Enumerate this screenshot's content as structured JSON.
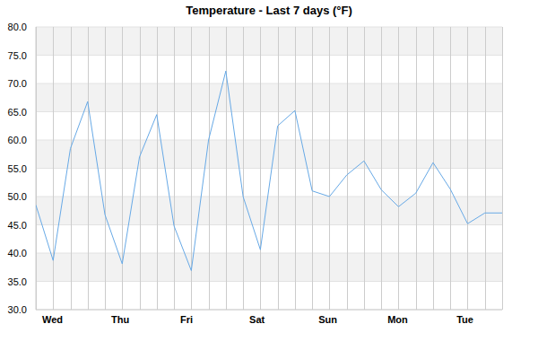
{
  "chart_data": {
    "type": "line",
    "title": "Temperature - Last 7 days (°F)",
    "categories": [
      "Wed",
      null,
      null,
      null,
      "Thu",
      null,
      null,
      null,
      "Fri",
      null,
      null,
      null,
      "Sat",
      null,
      null,
      null,
      "Sun",
      null,
      null,
      null,
      "Mon",
      null,
      null,
      null,
      "Tue",
      null,
      null,
      null
    ],
    "values": [
      48.5,
      38.7,
      58.5,
      66.8,
      46.8,
      38.1,
      57.0,
      64.5,
      44.8,
      36.9,
      60.0,
      72.2,
      50.0,
      40.6,
      62.5,
      65.2,
      51.0,
      50.0,
      53.8,
      56.3,
      51.2,
      48.2,
      50.6,
      56.0,
      51.3,
      45.2,
      47.1,
      47.1
    ],
    "color": "#67a9e6",
    "ylim": [
      30,
      80
    ],
    "yticks": [
      {
        "value": 30,
        "label": "30.0"
      },
      {
        "value": 35,
        "label": "35.0"
      },
      {
        "value": 40,
        "label": "40.0"
      },
      {
        "value": 45,
        "label": "45.0"
      },
      {
        "value": 50,
        "label": "50.0"
      },
      {
        "value": 55,
        "label": "55.0"
      },
      {
        "value": 60,
        "label": "60.0"
      },
      {
        "value": 65,
        "label": "65.0"
      },
      {
        "value": 70,
        "label": "70.0"
      },
      {
        "value": 75,
        "label": "75.0"
      },
      {
        "value": 80,
        "label": "80.0"
      }
    ],
    "grid": true
  }
}
